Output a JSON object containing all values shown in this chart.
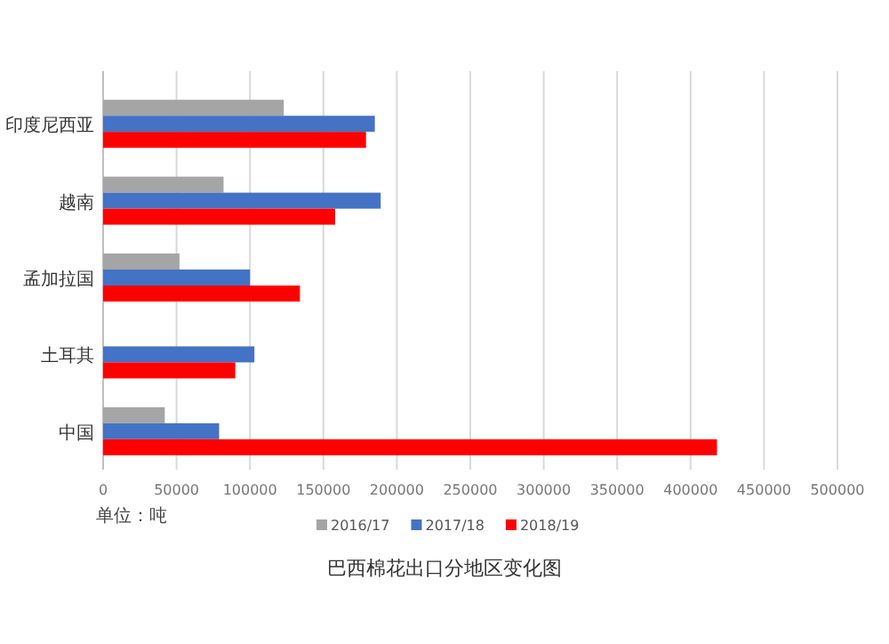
{
  "chart_data": {
    "type": "bar",
    "orientation": "horizontal",
    "title": "巴西棉花出口分地区变化图",
    "annotations": [
      "单位：吨"
    ],
    "categories": [
      "印度尼西亚",
      "越南",
      "孟加拉国",
      "土耳其",
      "中国"
    ],
    "series": [
      {
        "name": "2016/17",
        "color": "#a5a5a5",
        "values": [
          123000,
          82000,
          52000,
          null,
          42000
        ]
      },
      {
        "name": "2017/18",
        "color": "#4472c4",
        "values": [
          185000,
          189000,
          100000,
          103000,
          79000
        ]
      },
      {
        "name": "2018/19",
        "color": "#ff0000",
        "values": [
          179000,
          158000,
          134000,
          90000,
          418000
        ]
      }
    ],
    "xlim": [
      0,
      500000
    ],
    "xticks": [
      0,
      50000,
      100000,
      150000,
      200000,
      250000,
      300000,
      350000,
      400000,
      450000,
      500000
    ],
    "grid": "x",
    "legend": "bottom"
  }
}
